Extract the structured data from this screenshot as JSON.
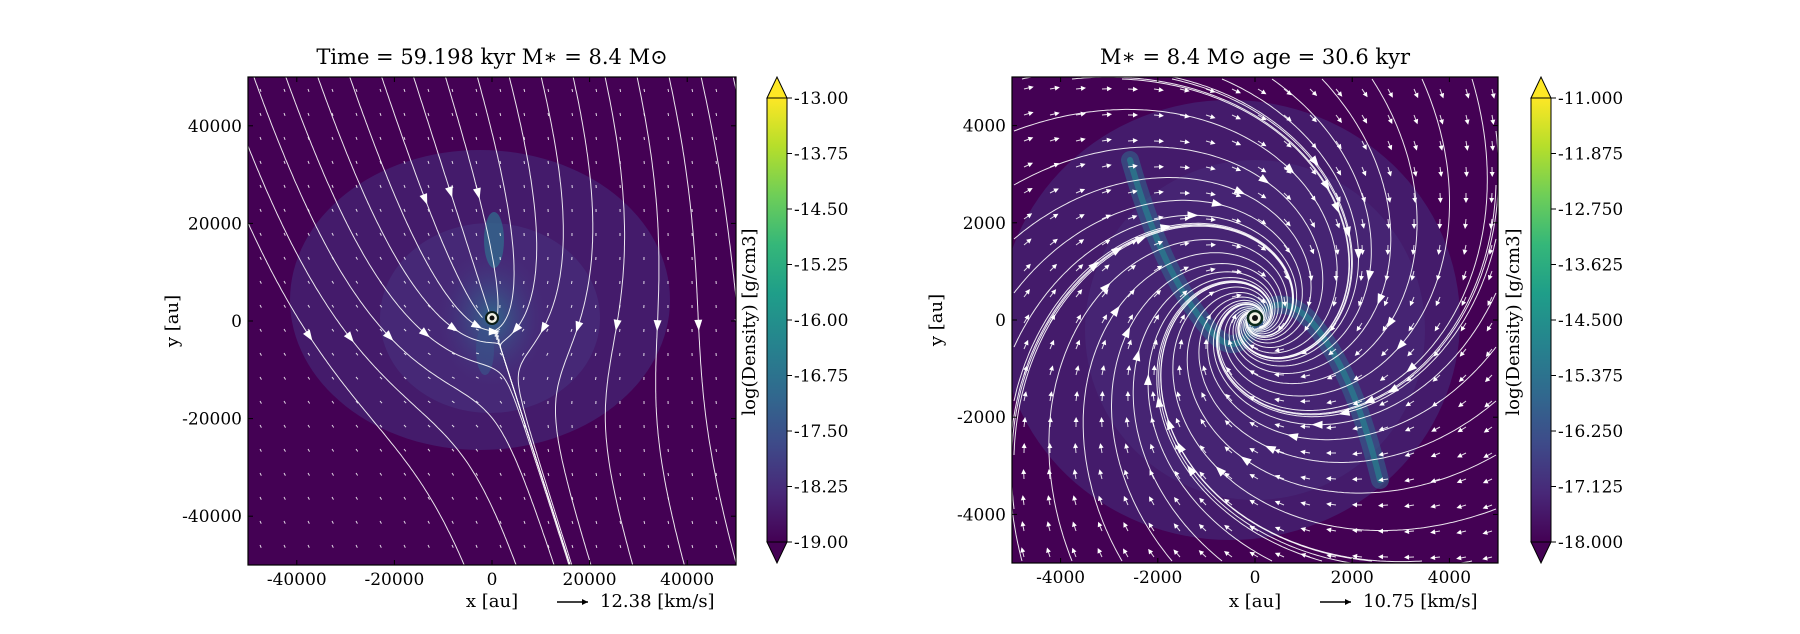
{
  "chart_data": [
    {
      "type": "heatmap",
      "title": "Time = 59.198 kyr    M$_*$ = 8.4 M$_\\odot$",
      "title_display": "Time = 59.198 kyr    M∗ = 8.4 M⊙",
      "xlabel": "x [au]",
      "ylabel": "y [au]",
      "xlim": [
        -50000,
        50000
      ],
      "ylim": [
        -50000,
        50000
      ],
      "xticks": [
        -40000,
        -20000,
        0,
        20000,
        40000
      ],
      "yticks": [
        -40000,
        -20000,
        0,
        20000,
        40000
      ],
      "xtick_labels": [
        "-40000",
        "-20000",
        "0",
        "20000",
        "40000"
      ],
      "ytick_labels": [
        "-40000",
        "-20000",
        "0",
        "20000",
        "40000"
      ],
      "quiver_key": "12.38 [km/s]",
      "colorbar": {
        "label": "log(Density) [g/cm3]",
        "range": [
          -19.0,
          -13.0
        ],
        "ticks": [
          -19.0,
          -18.25,
          -17.5,
          -16.75,
          -16.0,
          -15.25,
          -14.5,
          -13.75,
          -13.0
        ],
        "tick_labels": [
          "-19.00",
          "-18.25",
          "-17.50",
          "-16.75",
          "-16.00",
          "-15.25",
          "-14.50",
          "-13.75",
          "-13.00"
        ],
        "extend": "both"
      },
      "overlays": [
        "velocity streamlines",
        "velocity vectors",
        "star marker at origin"
      ]
    },
    {
      "type": "heatmap",
      "title": "M$_*$ = 8.4 M$_\\odot$        age = 30.6 kyr",
      "title_display": "M∗ = 8.4 M⊙        age = 30.6 kyr",
      "xlabel": "x [au]",
      "ylabel": "y [au]",
      "xlim": [
        -5000,
        5000
      ],
      "ylim": [
        -5000,
        5000
      ],
      "xticks": [
        -4000,
        -2000,
        0,
        2000,
        4000
      ],
      "yticks": [
        -4000,
        -2000,
        0,
        2000,
        4000
      ],
      "xtick_labels": [
        "-4000",
        "-2000",
        "0",
        "2000",
        "4000"
      ],
      "ytick_labels": [
        "-4000",
        "-2000",
        "0",
        "2000",
        "4000"
      ],
      "quiver_key": "10.75 [km/s]",
      "colorbar": {
        "label": "log(Density) [g/cm3]",
        "range": [
          -18.0,
          -11.0
        ],
        "ticks": [
          -18.0,
          -17.125,
          -16.25,
          -15.375,
          -14.5,
          -13.625,
          -12.75,
          -11.875,
          -11.0
        ],
        "tick_labels": [
          "-18.000",
          "-17.125",
          "-16.250",
          "-15.375",
          "-14.500",
          "-13.625",
          "-12.750",
          "-11.875",
          "-11.000"
        ],
        "extend": "both"
      },
      "overlays": [
        "velocity streamlines",
        "velocity vectors",
        "star marker at origin",
        "spiral density arms"
      ]
    }
  ],
  "colors": {
    "background": "#440154",
    "cmap_stops": [
      "#440154",
      "#482878",
      "#3e4a89",
      "#31688e",
      "#26828e",
      "#1f9e89",
      "#35b779",
      "#6ece58",
      "#b5de2b",
      "#fde725"
    ],
    "overlay": "#ffffff"
  }
}
